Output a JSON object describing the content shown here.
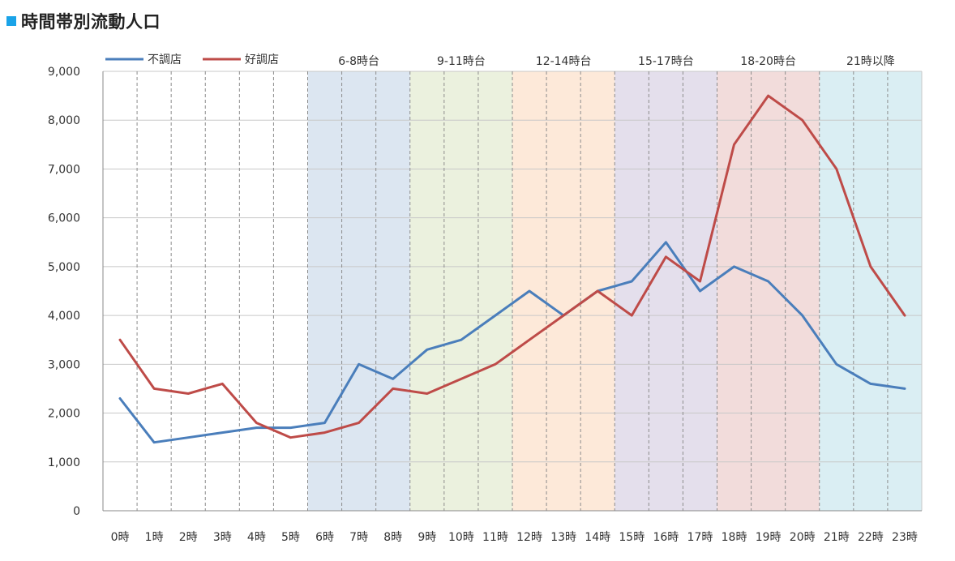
{
  "title": "時間帯別流動人口",
  "colors": {
    "title_mark": "#1aa3e8",
    "series_poor": "#4a7ebb",
    "series_good": "#be4b48",
    "grid": "#c8c8c8"
  },
  "chart_data": {
    "type": "line",
    "title": "時間帯別流動人口",
    "x": [
      "0時",
      "1時",
      "2時",
      "3時",
      "4時",
      "5時",
      "6時",
      "7時",
      "8時",
      "9時",
      "10時",
      "11時",
      "12時",
      "13時",
      "14時",
      "15時",
      "16時",
      "17時",
      "18時",
      "19時",
      "20時",
      "21時",
      "22時",
      "23時"
    ],
    "ylim": [
      0,
      9000
    ],
    "yticks": [
      "0",
      "1,000",
      "2,000",
      "3,000",
      "4,000",
      "5,000",
      "6,000",
      "7,000",
      "8,000",
      "9,000"
    ],
    "grid": true,
    "legend": "top-left",
    "series": [
      {
        "name": "不調店",
        "color": "#4a7ebb",
        "values": [
          2300,
          1400,
          1500,
          1600,
          1700,
          1700,
          1800,
          3000,
          2700,
          3300,
          3500,
          4000,
          4500,
          4000,
          4500,
          4700,
          5500,
          4500,
          5000,
          4700,
          4000,
          3000,
          2600,
          2500
        ]
      },
      {
        "name": "好調店",
        "color": "#be4b48",
        "values": [
          3500,
          2500,
          2400,
          2600,
          1800,
          1500,
          1600,
          1800,
          2500,
          2400,
          2700,
          3000,
          3500,
          4000,
          4500,
          4000,
          5200,
          4700,
          7500,
          8500,
          8000,
          7000,
          5000,
          4000
        ]
      }
    ],
    "bands": [
      {
        "label": "6-8時台",
        "from": 6,
        "to": 8,
        "color": "#dce6f1"
      },
      {
        "label": "9-11時台",
        "from": 9,
        "to": 11,
        "color": "#ebf1de"
      },
      {
        "label": "12-14時台",
        "from": 12,
        "to": 14,
        "color": "#fde9d9"
      },
      {
        "label": "15-17時台",
        "from": 15,
        "to": 17,
        "color": "#e4dfec"
      },
      {
        "label": "18-20時台",
        "from": 18,
        "to": 20,
        "color": "#f2dcdb"
      },
      {
        "label": "21時以降",
        "from": 21,
        "to": 23,
        "color": "#daeef3"
      }
    ]
  }
}
